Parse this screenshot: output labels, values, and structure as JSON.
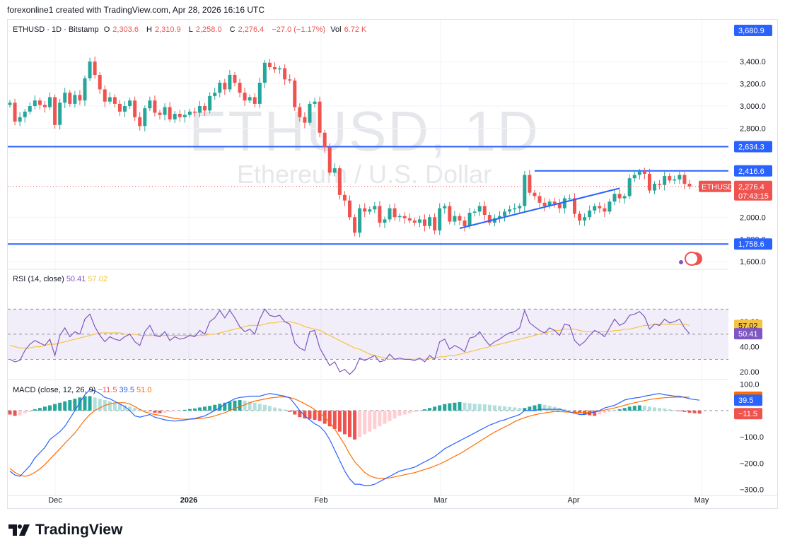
{
  "header": {
    "text": "forexonline1 created with TradingView.com, Apr 28, 2026 16:16 UTC"
  },
  "legend": {
    "symbol": "ETHUSD · 1D · Bitstamp",
    "o_label": "O",
    "o": "2,303.6",
    "h_label": "H",
    "h": "2,310.9",
    "l_label": "L",
    "l": "2,258.0",
    "c_label": "C",
    "c": "2,276.4",
    "change": "−27.0 (−1.17%)",
    "vol_label": "Vol",
    "vol": "6.72 K"
  },
  "watermark": {
    "title": "ETHUSD, 1D",
    "subtitle": "Ethereum / U.S. Dollar"
  },
  "footer": {
    "brand": "TradingView"
  },
  "colors": {
    "up": "#26a69a",
    "down": "#ef5350",
    "line": "#2962ff",
    "rsi_line": "#7e57c2",
    "rsi_ma": "#f5c343",
    "macd_signal": "#ff6d00",
    "rsi_band": "#7e57c21a"
  },
  "chart_data": [
    {
      "type": "candlestick",
      "name": "ETHUSD",
      "x_labels": [
        "Dec",
        "2026",
        "Feb",
        "Mar",
        "Apr",
        "May"
      ],
      "ylim": [
        1550,
        3700
      ],
      "y_ticks": [
        "3,400.0",
        "3,200.0",
        "3,000.0",
        "2,800.0",
        "1,600.0"
      ],
      "y_ticks_partial": [
        "2,000.0",
        "1,800.0"
      ],
      "price_levels": [
        {
          "label": "3,680.9",
          "value": 3680.9,
          "style": "tag"
        },
        {
          "label": "2,634.3",
          "value": 2634.3,
          "style": "horizontal-line"
        },
        {
          "label": "2,416.6",
          "value": 2416.6,
          "style": "segment"
        },
        {
          "label": "1,758.6",
          "value": 1758.6,
          "style": "horizontal-line"
        }
      ],
      "last_price": {
        "label": "2,276.4",
        "value": 2276.4,
        "symbol": "ETHUSD",
        "countdown": "07:43:15"
      },
      "trendline": {
        "from_value": 1900,
        "to_value": 2260
      },
      "closes": [
        3030,
        2860,
        2900,
        2950,
        3000,
        3050,
        3010,
        2990,
        3080,
        2830,
        3030,
        3120,
        3020,
        3100,
        3050,
        3250,
        3400,
        3280,
        3150,
        3040,
        3080,
        3020,
        2950,
        3000,
        3050,
        2900,
        2820,
        2980,
        3050,
        2940,
        2920,
        2990,
        2880,
        2930,
        2900,
        2920,
        2950,
        2940,
        3000,
        2960,
        3090,
        3120,
        3210,
        3150,
        3280,
        3210,
        3120,
        3050,
        3080,
        3020,
        3210,
        3390,
        3350,
        3330,
        3340,
        3240,
        3230,
        2990,
        2900,
        2850,
        3020,
        3040,
        2760,
        2630,
        2400,
        2440,
        2200,
        2150,
        2000,
        1860,
        2080,
        2050,
        2070,
        2100,
        1950,
        1980,
        2080,
        2000,
        2010,
        1990,
        1970,
        1950,
        1980,
        1920,
        2000,
        1880,
        2080,
        2100,
        1960,
        2010,
        1970,
        1920,
        2040,
        2050,
        2100,
        2020,
        1950,
        1990,
        2010,
        2050,
        2070,
        2080,
        2100,
        2380,
        2220,
        2190,
        2130,
        2100,
        2140,
        2120,
        2080,
        2170,
        2170,
        2030,
        1970,
        2000,
        2060,
        2100,
        2080,
        2050,
        2140,
        2210,
        2170,
        2190,
        2350,
        2380,
        2410,
        2390,
        2240,
        2300,
        2290,
        2370,
        2330,
        2340,
        2380,
        2300,
        2276.4
      ]
    },
    {
      "type": "line",
      "name": "RSI",
      "legend": "RSI (14, close)",
      "ylim": [
        15,
        100
      ],
      "y_ticks": [
        "40.00",
        "20.00"
      ],
      "y_ticks_partial": [
        "60.00"
      ],
      "bands": {
        "upper": 70,
        "middle": 50,
        "lower": 30
      },
      "series": [
        {
          "name": "RSI",
          "value_label": "50.41",
          "values": [
            30,
            28,
            29,
            37,
            42,
            45,
            43,
            41,
            46,
            33,
            49,
            55,
            48,
            52,
            50,
            62,
            66,
            56,
            49,
            44,
            48,
            46,
            45,
            48,
            50,
            44,
            41,
            52,
            57,
            49,
            48,
            52,
            45,
            48,
            46,
            47,
            49,
            48,
            53,
            50,
            60,
            63,
            69,
            63,
            69,
            63,
            56,
            52,
            54,
            50,
            62,
            70,
            65,
            64,
            65,
            60,
            58,
            43,
            39,
            37,
            52,
            53,
            39,
            32,
            25,
            28,
            20,
            22,
            18,
            22,
            31,
            29,
            31,
            33,
            28,
            29,
            34,
            30,
            31,
            30,
            30,
            29,
            31,
            28,
            33,
            30,
            44,
            46,
            38,
            41,
            39,
            36,
            47,
            48,
            52,
            46,
            41,
            44,
            46,
            49,
            51,
            52,
            55,
            69,
            59,
            56,
            53,
            51,
            55,
            53,
            49,
            58,
            57,
            45,
            41,
            44,
            49,
            53,
            51,
            48,
            55,
            62,
            57,
            59,
            65,
            66,
            68,
            64,
            54,
            58,
            57,
            62,
            59,
            60,
            62,
            55,
            50.41
          ]
        },
        {
          "name": "RSI-based MA",
          "value_label": "57.02",
          "values": [
            41,
            40,
            39,
            39,
            39,
            40,
            40,
            41,
            42,
            42,
            43,
            44,
            45,
            46,
            47,
            48,
            49,
            50,
            51,
            51,
            51,
            51,
            51,
            50,
            50,
            50,
            49,
            49,
            49,
            49,
            49,
            49,
            49,
            49,
            49,
            49,
            49,
            49,
            49,
            49,
            50,
            50,
            51,
            52,
            53,
            54,
            55,
            56,
            57,
            57,
            57,
            58,
            59,
            59,
            60,
            60,
            60,
            59,
            58,
            56,
            55,
            54,
            53,
            51,
            49,
            47,
            45,
            43,
            41,
            39,
            38,
            36,
            34,
            33,
            32,
            31,
            30,
            30,
            30,
            30,
            30,
            30,
            30,
            30,
            31,
            31,
            32,
            32,
            33,
            33,
            34,
            35,
            36,
            37,
            38,
            39,
            40,
            41,
            42,
            43,
            44,
            45,
            46,
            47,
            48,
            49,
            50,
            51,
            52,
            53,
            53,
            54,
            54,
            54,
            53,
            52,
            52,
            52,
            52,
            52,
            52,
            53,
            53,
            54,
            54,
            55,
            56,
            57,
            57,
            58,
            58,
            58,
            58,
            58,
            58,
            58,
            57.02
          ]
        }
      ]
    },
    {
      "type": "bar+line",
      "name": "MACD",
      "legend": "MACD (close, 12, 26, 9)",
      "ylim": [
        -320,
        110
      ],
      "y_ticks": [
        "−100.0",
        "−200.0",
        "−300.0"
      ],
      "y_ticks_partial": [
        "100.0"
      ],
      "value_labels": {
        "histogram": "−11.5",
        "macd": "39.5",
        "signal": "51.0"
      },
      "histogram": [
        -15,
        -20,
        -18,
        -10,
        -5,
        5,
        10,
        15,
        20,
        25,
        30,
        35,
        40,
        45,
        50,
        55,
        55,
        50,
        45,
        40,
        35,
        30,
        25,
        20,
        15,
        10,
        5,
        0,
        -3,
        -8,
        -10,
        -8,
        -5,
        -3,
        0,
        3,
        6,
        8,
        12,
        15,
        18,
        22,
        26,
        30,
        34,
        38,
        40,
        38,
        34,
        30,
        26,
        22,
        18,
        12,
        8,
        4,
        -5,
        -15,
        -25,
        -30,
        -32,
        -35,
        -40,
        -50,
        -60,
        -70,
        -80,
        -90,
        -100,
        -110,
        -100,
        -90,
        -80,
        -70,
        -60,
        -50,
        -40,
        -30,
        -20,
        -15,
        -10,
        -5,
        0,
        5,
        10,
        15,
        20,
        25,
        28,
        30,
        32,
        30,
        28,
        26,
        25,
        24,
        22,
        20,
        18,
        16,
        14,
        12,
        10,
        10,
        15,
        20,
        25,
        22,
        18,
        14,
        10,
        5,
        0,
        -5,
        -10,
        -15,
        -18,
        -20,
        -15,
        -10,
        -5,
        0,
        5,
        10,
        15,
        18,
        20,
        18,
        15,
        12,
        10,
        8,
        5,
        2,
        -2,
        -5,
        -8,
        -10,
        -11.5
      ],
      "series": [
        {
          "name": "MACD",
          "values": [
            -230,
            -245,
            -250,
            -230,
            -210,
            -180,
            -160,
            -140,
            -110,
            -95,
            -80,
            -60,
            -30,
            0,
            30,
            60,
            80,
            75,
            65,
            50,
            45,
            35,
            25,
            15,
            0,
            -20,
            -25,
            -20,
            -15,
            -25,
            -30,
            -35,
            -38,
            -40,
            -38,
            -36,
            -32,
            -30,
            -25,
            -20,
            -10,
            0,
            10,
            25,
            35,
            45,
            50,
            52,
            55,
            55,
            55,
            60,
            65,
            62,
            58,
            55,
            48,
            25,
            0,
            -20,
            -35,
            -50,
            -60,
            -80,
            -110,
            -150,
            -190,
            -230,
            -260,
            -280,
            -280,
            -285,
            -285,
            -280,
            -270,
            -260,
            -250,
            -240,
            -230,
            -225,
            -220,
            -215,
            -205,
            -195,
            -185,
            -175,
            -160,
            -145,
            -135,
            -125,
            -115,
            -105,
            -95,
            -85,
            -75,
            -65,
            -55,
            -48,
            -40,
            -35,
            -28,
            -22,
            -15,
            0,
            0,
            0,
            5,
            5,
            5,
            5,
            5,
            0,
            -5,
            -10,
            -15,
            -15,
            -10,
            -5,
            0,
            10,
            15,
            20,
            30,
            40,
            45,
            48,
            50,
            55,
            58,
            62,
            65,
            60,
            58,
            55,
            55,
            50,
            45,
            42,
            39.5
          ]
        },
        {
          "name": "Signal",
          "values": [
            -220,
            -235,
            -245,
            -250,
            -245,
            -235,
            -222,
            -205,
            -185,
            -165,
            -145,
            -125,
            -105,
            -85,
            -60,
            -35,
            -15,
            0,
            10,
            20,
            25,
            30,
            30,
            30,
            25,
            15,
            5,
            -5,
            -10,
            -15,
            -18,
            -22,
            -26,
            -30,
            -32,
            -33,
            -33,
            -32,
            -30,
            -28,
            -25,
            -20,
            -14,
            -8,
            0,
            8,
            15,
            22,
            30,
            36,
            40,
            44,
            48,
            50,
            52,
            52,
            50,
            44,
            36,
            26,
            16,
            4,
            -10,
            -25,
            -45,
            -70,
            -100,
            -130,
            -165,
            -195,
            -215,
            -235,
            -248,
            -255,
            -258,
            -258,
            -256,
            -252,
            -248,
            -244,
            -240,
            -236,
            -230,
            -224,
            -218,
            -211,
            -203,
            -194,
            -184,
            -174,
            -164,
            -153,
            -141,
            -129,
            -117,
            -105,
            -93,
            -82,
            -72,
            -62,
            -53,
            -42,
            -34,
            -27,
            -21,
            -16,
            -12,
            -9,
            -6,
            -4,
            -4,
            -5,
            -6,
            -7,
            -8,
            -8,
            -7,
            -5,
            -2,
            2,
            6,
            10,
            15,
            20,
            25,
            30,
            34,
            38,
            42,
            45,
            47,
            49,
            50,
            51,
            51.5,
            51.2,
            51.0
          ]
        }
      ]
    }
  ]
}
